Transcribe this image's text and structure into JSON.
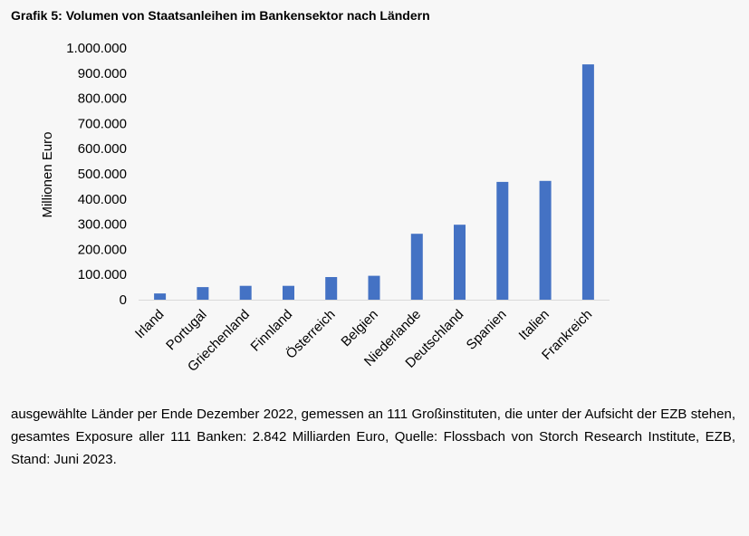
{
  "title": "Grafik 5: Volumen von Staatsanleihen im Bankensektor nach Ländern",
  "chart_data": {
    "type": "bar",
    "title": "Grafik 5: Volumen von Staatsanleihen im Bankensektor nach Ländern",
    "xlabel": "",
    "ylabel": "Millionen Euro",
    "ylim": [
      0,
      1000000
    ],
    "yticks": [
      0,
      100000,
      200000,
      300000,
      400000,
      500000,
      600000,
      700000,
      800000,
      900000,
      1000000
    ],
    "ytick_labels": [
      "0",
      "100.000",
      "200.000",
      "300.000",
      "400.000",
      "500.000",
      "600.000",
      "700.000",
      "800.000",
      "900.000",
      "1.000.000"
    ],
    "categories": [
      "Irland",
      "Portugal",
      "Griechenland",
      "Finnland",
      "Österreich",
      "Belgien",
      "Niederlande",
      "Deutschland",
      "Spanien",
      "Italien",
      "Frankreich"
    ],
    "values": [
      25000,
      50000,
      55000,
      55000,
      90000,
      95000,
      262000,
      298000,
      468000,
      472000,
      935000
    ],
    "color": "#4472c4",
    "grid": false,
    "legend": "none"
  },
  "caption": "ausgewählte Länder per Ende Dezember 2022, gemessen an 111 Großinstituten, die unter der Aufsicht der EZB stehen, gesamtes Exposure aller 111 Banken: 2.842 Milliarden Euro, Quelle: Flossbach von Storch Research Institute, EZB, Stand: Juni 2023."
}
